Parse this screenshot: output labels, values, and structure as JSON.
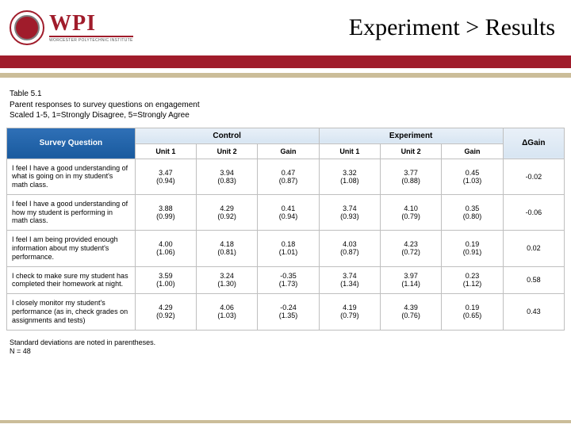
{
  "header": {
    "logo_main": "WPI",
    "logo_sub": "WORCESTER POLYTECHNIC INSTITUTE",
    "title": "Experiment > Results"
  },
  "caption": {
    "line1": "Table 5.1",
    "line2": "Parent responses to survey questions on engagement",
    "line3": "Scaled 1-5, 1=Strongly Disagree, 5=Strongly Agree"
  },
  "table": {
    "survey_question_header": "Survey Question",
    "group_control": "Control",
    "group_experiment": "Experiment",
    "sub": {
      "unit1": "Unit 1",
      "unit2": "Unit 2",
      "gain": "Gain",
      "dgain": "ΔGain"
    },
    "rows": [
      {
        "q": "I feel I have a good understanding of what is going on in my student's math class.",
        "c": [
          {
            "m": "3.47",
            "sd": "(0.94)"
          },
          {
            "m": "3.94",
            "sd": "(0.83)"
          },
          {
            "m": "0.47",
            "sd": "(0.87)"
          },
          {
            "m": "3.32",
            "sd": "(1.08)"
          },
          {
            "m": "3.77",
            "sd": "(0.88)"
          },
          {
            "m": "0.45",
            "sd": "(1.03)"
          }
        ],
        "dg": "-0.02"
      },
      {
        "q": "I feel I have a good understanding of how my student is performing in math class.",
        "c": [
          {
            "m": "3.88",
            "sd": "(0.99)"
          },
          {
            "m": "4.29",
            "sd": "(0.92)"
          },
          {
            "m": "0.41",
            "sd": "(0.94)"
          },
          {
            "m": "3.74",
            "sd": "(0.93)"
          },
          {
            "m": "4.10",
            "sd": "(0.79)"
          },
          {
            "m": "0.35",
            "sd": "(0.80)"
          }
        ],
        "dg": "-0.06"
      },
      {
        "q": "I feel I am being provided enough information about my student's performance.",
        "c": [
          {
            "m": "4.00",
            "sd": "(1.06)"
          },
          {
            "m": "4.18",
            "sd": "(0.81)"
          },
          {
            "m": "0.18",
            "sd": "(1.01)"
          },
          {
            "m": "4.03",
            "sd": "(0.87)"
          },
          {
            "m": "4.23",
            "sd": "(0.72)"
          },
          {
            "m": "0.19",
            "sd": "(0.91)"
          }
        ],
        "dg": "0.02"
      },
      {
        "q": "I check to make sure my student has completed their homework at night.",
        "c": [
          {
            "m": "3.59",
            "sd": "(1.00)"
          },
          {
            "m": "3.24",
            "sd": "(1.30)"
          },
          {
            "m": "-0.35",
            "sd": "(1.73)"
          },
          {
            "m": "3.74",
            "sd": "(1.34)"
          },
          {
            "m": "3.97",
            "sd": "(1.14)"
          },
          {
            "m": "0.23",
            "sd": "(1.12)"
          }
        ],
        "dg": "0.58"
      },
      {
        "q": "I closely monitor my student's performance (as in, check grades on assignments and tests)",
        "c": [
          {
            "m": "4.29",
            "sd": "(0.92)"
          },
          {
            "m": "4.06",
            "sd": "(1.03)"
          },
          {
            "m": "-0.24",
            "sd": "(1.35)"
          },
          {
            "m": "4.19",
            "sd": "(0.79)"
          },
          {
            "m": "4.39",
            "sd": "(0.76)"
          },
          {
            "m": "0.19",
            "sd": "(0.65)"
          }
        ],
        "dg": "0.43"
      }
    ]
  },
  "footnote": {
    "line1": "Standard deviations are noted in parentheses.",
    "line2": "N = 48"
  },
  "colors": {
    "brand": "#a01c2b",
    "tan": "#cbbd99",
    "header_grad_top": "#2f70b7",
    "header_grad_bot": "#195a9e",
    "group_grad_top": "#e9f0f8",
    "group_grad_bot": "#d7e5f2",
    "border": "#bfbfbf"
  }
}
